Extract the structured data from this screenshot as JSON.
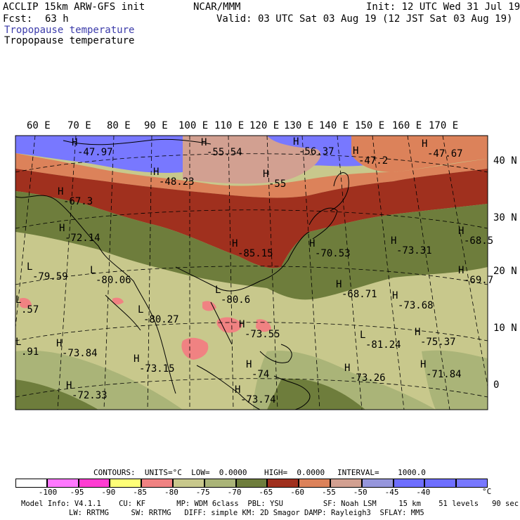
{
  "header": {
    "model": "ACCLIP 15km ARW-GFS init",
    "center": "NCAR/MMM",
    "init": "Init: 12 UTC Wed 31 Jul 19",
    "fcst_label": "Fcst:",
    "fcst_value": "63 h",
    "valid": "Valid: 03 UTC Sat 03 Aug 19 (12 JST Sat 03 Aug 19)",
    "field_title_1": "Tropopause temperature",
    "field_title_2": "Tropopause temperature"
  },
  "map": {
    "lon_labels": [
      "60 E",
      "70 E",
      "80 E",
      "90 E",
      "100 E",
      "110 E",
      "120 E",
      "130 E",
      "140 E",
      "150 E",
      "160 E",
      "170 E"
    ],
    "lat_labels": [
      "40 N",
      "30 N",
      "20 N",
      "10 N",
      "0"
    ],
    "extrema": [
      {
        "t": "H",
        "v": "-47.97"
      },
      {
        "t": "H",
        "v": "-55.54"
      },
      {
        "t": "H",
        "v": "-56.37"
      },
      {
        "t": "H",
        "v": "-47.2"
      },
      {
        "t": "H",
        "v": "-47.67"
      },
      {
        "t": "H",
        "v": "-48.23"
      },
      {
        "t": "H",
        "v": "-55"
      },
      {
        "t": "H",
        "v": "-67.3"
      },
      {
        "t": "H",
        "v": "-72.14"
      },
      {
        "t": "H",
        "v": "-85.15"
      },
      {
        "t": "H",
        "v": "-70.53"
      },
      {
        "t": "H",
        "v": "-73.31"
      },
      {
        "t": "H",
        "v": "-68.5"
      },
      {
        "t": "L",
        "v": "-79.59"
      },
      {
        "t": "L",
        "v": "-80.06"
      },
      {
        "t": "H",
        "v": "-69.7"
      },
      {
        "t": "L",
        "v": "-80.6"
      },
      {
        "t": "H",
        "v": "-68.71"
      },
      {
        "t": "H",
        "v": "-73.68"
      },
      {
        "t": "L",
        "v": ".57"
      },
      {
        "t": "L",
        "v": "-80.27"
      },
      {
        "t": "H",
        "v": "-73.55"
      },
      {
        "t": "H",
        "v": "-75.37"
      },
      {
        "t": "L",
        "v": "-81.24"
      },
      {
        "t": "H",
        "v": "-73.84"
      },
      {
        "t": "H",
        "v": "-73.15"
      },
      {
        "t": "H",
        "v": "-74"
      },
      {
        "t": "H",
        "v": "-73.26"
      },
      {
        "t": "H",
        "v": "-71.84"
      },
      {
        "t": "H",
        "v": "-72.33"
      },
      {
        "t": "H",
        "v": "-73.74"
      },
      {
        "t": "L",
        "v": ".91"
      }
    ]
  },
  "contour_info": {
    "contours": "CONTOURS:  UNITS=°C  LOW=  0.0000",
    "high": "HIGH=  0.0000",
    "interval": "INTERVAL=    1000.0"
  },
  "colorbar": {
    "colors": [
      "#ffffff",
      "#ff78ff",
      "#ff3cd2",
      "#ffff78",
      "#f08282",
      "#c8c88c",
      "#aab478",
      "#6e7d3c",
      "#a0301e",
      "#dc825a",
      "#d2a091",
      "#9696dc",
      "#6e6eff",
      "#6e6eff",
      "#7878ff"
    ],
    "labels": [
      "-100",
      "-95",
      "-90",
      "-85",
      "-80",
      "-75",
      "-70",
      "-65",
      "-60",
      "-55",
      "-50",
      "-45",
      "-40"
    ],
    "unit": "°C"
  },
  "model_info": {
    "line1": "Model Info: V4.1.1    CU: KF       MP: WDM 6class  PBL: YSU         SF: Noah LSM     15 km    51 levels   90 sec",
    "line2": "LW: RRTMG     SW: RRTMG   DIFF: simple KM: 2D Smagor DAMP: Rayleigh3  SFLAY: MM5"
  }
}
